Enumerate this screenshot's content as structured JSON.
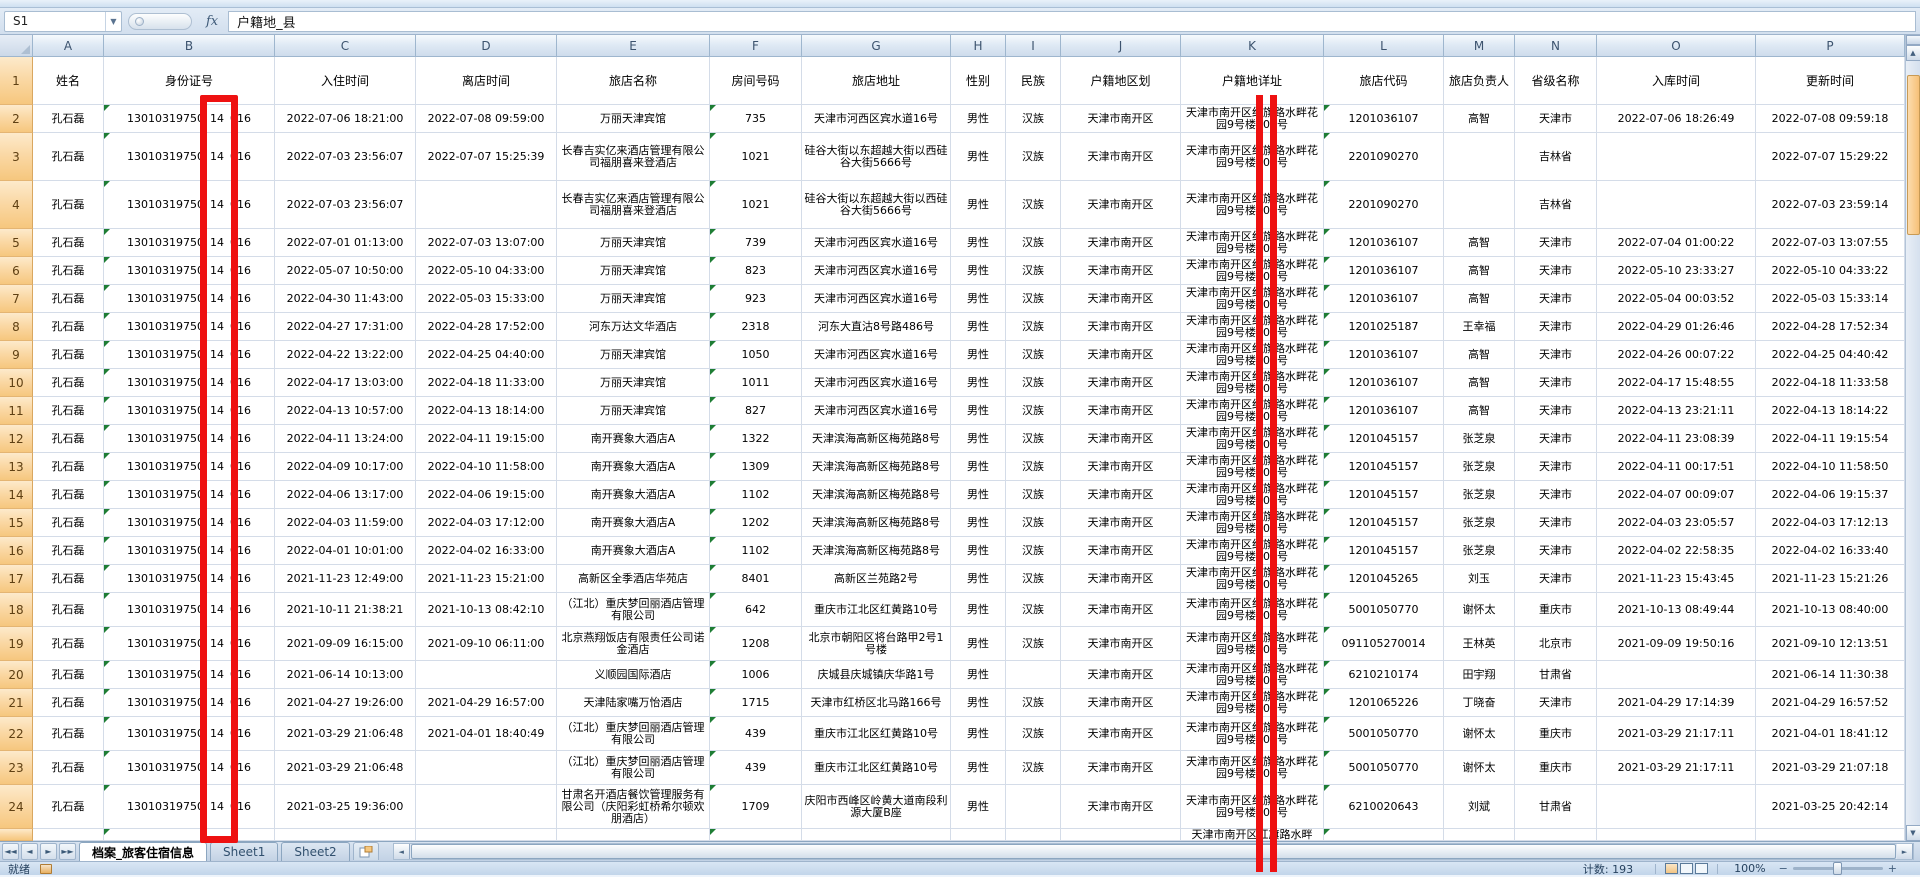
{
  "formula_bar": {
    "name_box": "S1",
    "fx": "fx",
    "content": "户籍地_县"
  },
  "grid": {
    "column_letters": [
      "A",
      "B",
      "C",
      "D",
      "E",
      "F",
      "G",
      "H",
      "I",
      "J",
      "K",
      "L",
      "M",
      "N",
      "O",
      "P"
    ],
    "header_labels": [
      "姓名",
      "身份证号",
      "入住时间",
      "离店时间",
      "旅店名称",
      "房间号码",
      "旅店地址",
      "性别",
      "民族",
      "户籍地区划",
      "户籍地详址",
      "旅店代码",
      "旅店负责人",
      "省级名称",
      "入库时间",
      "更新时间"
    ],
    "first_row_number": 1
  },
  "person": {
    "name": "孔石磊",
    "id_parts": [
      "13010319750",
      "14",
      "016"
    ],
    "k_addr": "天津市南开区红旗路水畔花园9号楼101号"
  },
  "partial_row_k": "天津市南开区红旗路水畔",
  "rows": [
    {
      "in": "2022-07-06 18:21:00",
      "out": "2022-07-08 09:59:00",
      "hotel": "万丽天津宾馆",
      "room": "735",
      "addr": "天津市河西区宾水道16号",
      "gender": "男性",
      "ethnic": "汉族",
      "district": "天津市南开区",
      "code": "1201036107",
      "manager": "高智",
      "province": "天津市",
      "stored": "2022-07-06 18:26:49",
      "updated": "2022-07-08 09:59:18"
    },
    {
      "in": "2022-07-03 23:56:07",
      "out": "2022-07-07 15:25:39",
      "hotel": "长春吉实亿来酒店管理有限公司福朋喜来登酒店",
      "room": "1021",
      "addr": "硅谷大街以东超越大街以西硅谷大街5666号",
      "gender": "男性",
      "ethnic": "汉族",
      "district": "天津市南开区",
      "code": "2201090270",
      "manager": "",
      "province": "吉林省",
      "stored": "",
      "updated": "2022-07-07 15:29:22"
    },
    {
      "in": "2022-07-03 23:56:07",
      "out": "",
      "hotel": "长春吉实亿来酒店管理有限公司福朋喜来登酒店",
      "room": "1021",
      "addr": "硅谷大街以东超越大街以西硅谷大街5666号",
      "gender": "男性",
      "ethnic": "汉族",
      "district": "天津市南开区",
      "code": "2201090270",
      "manager": "",
      "province": "吉林省",
      "stored": "",
      "updated": "2022-07-03 23:59:14"
    },
    {
      "in": "2022-07-01 01:13:00",
      "out": "2022-07-03 13:07:00",
      "hotel": "万丽天津宾馆",
      "room": "739",
      "addr": "天津市河西区宾水道16号",
      "gender": "男性",
      "ethnic": "汉族",
      "district": "天津市南开区",
      "code": "1201036107",
      "manager": "高智",
      "province": "天津市",
      "stored": "2022-07-04 01:00:22",
      "updated": "2022-07-03 13:07:55"
    },
    {
      "in": "2022-05-07 10:50:00",
      "out": "2022-05-10 04:33:00",
      "hotel": "万丽天津宾馆",
      "room": "823",
      "addr": "天津市河西区宾水道16号",
      "gender": "男性",
      "ethnic": "汉族",
      "district": "天津市南开区",
      "code": "1201036107",
      "manager": "高智",
      "province": "天津市",
      "stored": "2022-05-10 23:33:27",
      "updated": "2022-05-10 04:33:22"
    },
    {
      "in": "2022-04-30 11:43:00",
      "out": "2022-05-03 15:33:00",
      "hotel": "万丽天津宾馆",
      "room": "923",
      "addr": "天津市河西区宾水道16号",
      "gender": "男性",
      "ethnic": "汉族",
      "district": "天津市南开区",
      "code": "1201036107",
      "manager": "高智",
      "province": "天津市",
      "stored": "2022-05-04 00:03:52",
      "updated": "2022-05-03 15:33:14"
    },
    {
      "in": "2022-04-27 17:31:00",
      "out": "2022-04-28 17:52:00",
      "hotel": "河东万达文华酒店",
      "room": "2318",
      "addr": "河东大直沽8号路486号",
      "gender": "男性",
      "ethnic": "汉族",
      "district": "天津市南开区",
      "code": "1201025187",
      "manager": "王幸福",
      "province": "天津市",
      "stored": "2022-04-29 01:26:46",
      "updated": "2022-04-28 17:52:34"
    },
    {
      "in": "2022-04-22 13:22:00",
      "out": "2022-04-25 04:40:00",
      "hotel": "万丽天津宾馆",
      "room": "1050",
      "addr": "天津市河西区宾水道16号",
      "gender": "男性",
      "ethnic": "汉族",
      "district": "天津市南开区",
      "code": "1201036107",
      "manager": "高智",
      "province": "天津市",
      "stored": "2022-04-26 00:07:22",
      "updated": "2022-04-25 04:40:42"
    },
    {
      "in": "2022-04-17 13:03:00",
      "out": "2022-04-18 11:33:00",
      "hotel": "万丽天津宾馆",
      "room": "1011",
      "addr": "天津市河西区宾水道16号",
      "gender": "男性",
      "ethnic": "汉族",
      "district": "天津市南开区",
      "code": "1201036107",
      "manager": "高智",
      "province": "天津市",
      "stored": "2022-04-17 15:48:55",
      "updated": "2022-04-18 11:33:58"
    },
    {
      "in": "2022-04-13 10:57:00",
      "out": "2022-04-13 18:14:00",
      "hotel": "万丽天津宾馆",
      "room": "827",
      "addr": "天津市河西区宾水道16号",
      "gender": "男性",
      "ethnic": "汉族",
      "district": "天津市南开区",
      "code": "1201036107",
      "manager": "高智",
      "province": "天津市",
      "stored": "2022-04-13 23:21:11",
      "updated": "2022-04-13 18:14:22"
    },
    {
      "in": "2022-04-11 13:24:00",
      "out": "2022-04-11 19:15:00",
      "hotel": "南开赛象大酒店A",
      "room": "1322",
      "addr": "天津滨海高新区梅苑路8号",
      "gender": "男性",
      "ethnic": "汉族",
      "district": "天津市南开区",
      "code": "1201045157",
      "manager": "张芝泉",
      "province": "天津市",
      "stored": "2022-04-11 23:08:39",
      "updated": "2022-04-11 19:15:54"
    },
    {
      "in": "2022-04-09 10:17:00",
      "out": "2022-04-10 11:58:00",
      "hotel": "南开赛象大酒店A",
      "room": "1309",
      "addr": "天津滨海高新区梅苑路8号",
      "gender": "男性",
      "ethnic": "汉族",
      "district": "天津市南开区",
      "code": "1201045157",
      "manager": "张芝泉",
      "province": "天津市",
      "stored": "2022-04-11 00:17:51",
      "updated": "2022-04-10 11:58:50"
    },
    {
      "in": "2022-04-06 13:17:00",
      "out": "2022-04-06 19:15:00",
      "hotel": "南开赛象大酒店A",
      "room": "1102",
      "addr": "天津滨海高新区梅苑路8号",
      "gender": "男性",
      "ethnic": "汉族",
      "district": "天津市南开区",
      "code": "1201045157",
      "manager": "张芝泉",
      "province": "天津市",
      "stored": "2022-04-07 00:09:07",
      "updated": "2022-04-06 19:15:37"
    },
    {
      "in": "2022-04-03 11:59:00",
      "out": "2022-04-03 17:12:00",
      "hotel": "南开赛象大酒店A",
      "room": "1202",
      "addr": "天津滨海高新区梅苑路8号",
      "gender": "男性",
      "ethnic": "汉族",
      "district": "天津市南开区",
      "code": "1201045157",
      "manager": "张芝泉",
      "province": "天津市",
      "stored": "2022-04-03 23:05:57",
      "updated": "2022-04-03 17:12:13"
    },
    {
      "in": "2022-04-01 10:01:00",
      "out": "2022-04-02 16:33:00",
      "hotel": "南开赛象大酒店A",
      "room": "1102",
      "addr": "天津滨海高新区梅苑路8号",
      "gender": "男性",
      "ethnic": "汉族",
      "district": "天津市南开区",
      "code": "1201045157",
      "manager": "张芝泉",
      "province": "天津市",
      "stored": "2022-04-02 22:58:35",
      "updated": "2022-04-02 16:33:40"
    },
    {
      "in": "2021-11-23 12:49:00",
      "out": "2021-11-23 15:21:00",
      "hotel": "高新区全季酒店华苑店",
      "room": "8401",
      "addr": "高新区兰苑路2号",
      "gender": "男性",
      "ethnic": "汉族",
      "district": "天津市南开区",
      "code": "1201045265",
      "manager": "刘玉",
      "province": "天津市",
      "stored": "2021-11-23 15:43:45",
      "updated": "2021-11-23 15:21:26"
    },
    {
      "in": "2021-10-11 21:38:21",
      "out": "2021-10-13 08:42:10",
      "hotel": "（江北）重庆梦回丽酒店管理有限公司",
      "room": "642",
      "addr": "重庆市江北区红黄路10号",
      "gender": "男性",
      "ethnic": "汉族",
      "district": "天津市南开区",
      "code": "5001050770",
      "manager": "谢怀太",
      "province": "重庆市",
      "stored": "2021-10-13 08:49:44",
      "updated": "2021-10-13 08:40:00"
    },
    {
      "in": "2021-09-09 16:15:00",
      "out": "2021-09-10 06:11:00",
      "hotel": "北京燕翔饭店有限责任公司诺金酒店",
      "room": "1208",
      "addr": "北京市朝阳区将台路甲2号1号楼",
      "gender": "男性",
      "ethnic": "汉族",
      "district": "天津市南开区",
      "code": "091105270014",
      "manager": "王林英",
      "province": "北京市",
      "stored": "2021-09-09 19:50:16",
      "updated": "2021-09-10 12:13:51"
    },
    {
      "in": "2021-06-14 10:13:00",
      "out": "",
      "hotel": "义顺园国际酒店",
      "room": "1006",
      "addr": "庆城县庆城镇庆华路1号",
      "gender": "男性",
      "ethnic": "",
      "district": "天津市南开区",
      "code": "6210210174",
      "manager": "田宇翔",
      "province": "甘肃省",
      "stored": "",
      "updated": "2021-06-14 11:30:38"
    },
    {
      "in": "2021-04-27 19:26:00",
      "out": "2021-04-29 16:57:00",
      "hotel": "天津陆家嘴万怡酒店",
      "room": "1715",
      "addr": "天津市红桥区北马路166号",
      "gender": "男性",
      "ethnic": "汉族",
      "district": "天津市南开区",
      "code": "1201065226",
      "manager": "丁晓奋",
      "province": "天津市",
      "stored": "2021-04-29 17:14:39",
      "updated": "2021-04-29 16:57:52"
    },
    {
      "in": "2021-03-29 21:06:48",
      "out": "2021-04-01 18:40:49",
      "hotel": "（江北）重庆梦回丽酒店管理有限公司",
      "room": "439",
      "addr": "重庆市江北区红黄路10号",
      "gender": "男性",
      "ethnic": "汉族",
      "district": "天津市南开区",
      "code": "5001050770",
      "manager": "谢怀太",
      "province": "重庆市",
      "stored": "2021-03-29 21:17:11",
      "updated": "2021-04-01 18:41:12"
    },
    {
      "in": "2021-03-29 21:06:48",
      "out": "",
      "hotel": "（江北）重庆梦回丽酒店管理有限公司",
      "room": "439",
      "addr": "重庆市江北区红黄路10号",
      "gender": "男性",
      "ethnic": "汉族",
      "district": "天津市南开区",
      "code": "5001050770",
      "manager": "谢怀太",
      "province": "重庆市",
      "stored": "2021-03-29 21:17:11",
      "updated": "2021-03-29 21:07:18"
    },
    {
      "in": "2021-03-25 19:36:00",
      "out": "",
      "hotel": "甘肃名开酒店餐饮管理服务有限公司（庆阳彩虹桥希尔顿欢朋酒店）",
      "room": "1709",
      "addr": "庆阳市西峰区岭黄大道南段利源大厦B座",
      "gender": "男性",
      "ethnic": "",
      "district": "天津市南开区",
      "code": "6210020643",
      "manager": "刘斌",
      "province": "甘肃省",
      "stored": "",
      "updated": "2021-03-25 20:42:14"
    }
  ],
  "tabs": {
    "sheets": [
      {
        "label": "档案_旅客住宿信息",
        "active": true
      },
      {
        "label": "Sheet1",
        "active": false
      },
      {
        "label": "Sheet2",
        "active": false
      }
    ]
  },
  "status": {
    "ready": "就绪",
    "count": "计数: 193",
    "zoom": "100%"
  },
  "colors": {
    "annotation": "#ee1111",
    "row_header": "#f6c77e",
    "col_header": "#cedcec"
  }
}
